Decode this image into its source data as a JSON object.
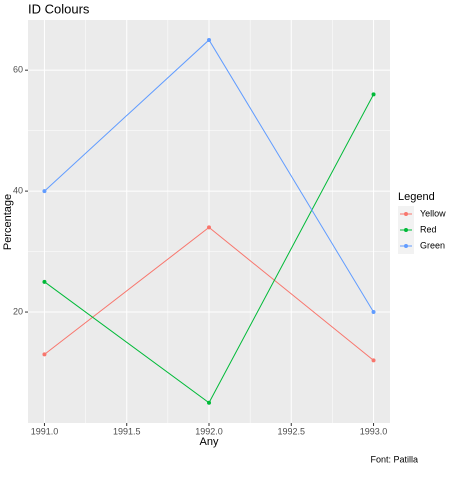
{
  "chart_data": {
    "type": "line",
    "title": "ID Colours",
    "x_label": "Any",
    "y_label": "Percentage",
    "caption": "Font: Patilla",
    "legend_title": "Legend",
    "legend_position": "right",
    "x": [
      1991,
      1992,
      1993
    ],
    "series": [
      {
        "name": "Yellow",
        "color": "#F8766D",
        "values": [
          13,
          34,
          12
        ]
      },
      {
        "name": "Red",
        "color": "#00BA38",
        "values": [
          25,
          5,
          56
        ]
      },
      {
        "name": "Green",
        "color": "#619CFF",
        "values": [
          40,
          65,
          20
        ]
      }
    ],
    "xlim": [
      1990.9,
      1993.1
    ],
    "xticks": [
      {
        "value": 1991,
        "label": "1991.0"
      },
      1991.5,
      {
        "value": 1992,
        "label": "1992.0"
      },
      1992.5,
      {
        "value": 1993,
        "label": "1993.0"
      }
    ],
    "ylim": [
      1.65,
      68.3
    ],
    "yticks": [
      20,
      40,
      60
    ],
    "grid": true,
    "minor_grid": true,
    "panel_color": "#EBEBEB"
  }
}
